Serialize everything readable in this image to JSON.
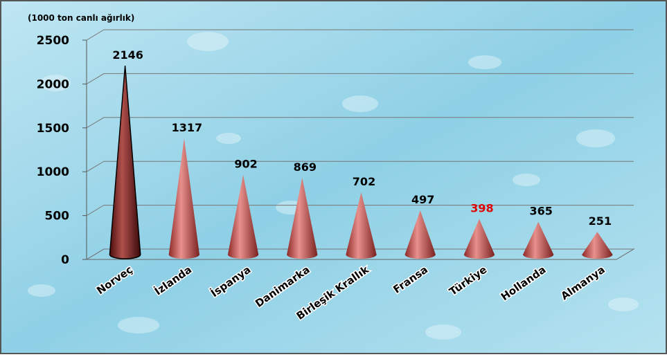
{
  "chart_data": {
    "type": "cone",
    "y_axis_label": "(1000 ton canlı ağırlık)",
    "categories": [
      "Norveç",
      "İzlanda",
      "İspanya",
      "Danimarka",
      "Birleşik Krallık",
      "Fransa",
      "Türkiye",
      "Hollanda",
      "Almanya"
    ],
    "values": [
      2146,
      1317,
      902,
      869,
      702,
      497,
      398,
      365,
      251
    ],
    "color": "#c0504d",
    "value_label_colors": [
      "#000",
      "#000",
      "#000",
      "#000",
      "#000",
      "#000",
      "#e00000",
      "#000",
      "#000"
    ],
    "ylim": [
      0,
      2500
    ],
    "yticks": [
      0,
      500,
      1000,
      1500,
      2000,
      2500
    ],
    "grid": true
  }
}
